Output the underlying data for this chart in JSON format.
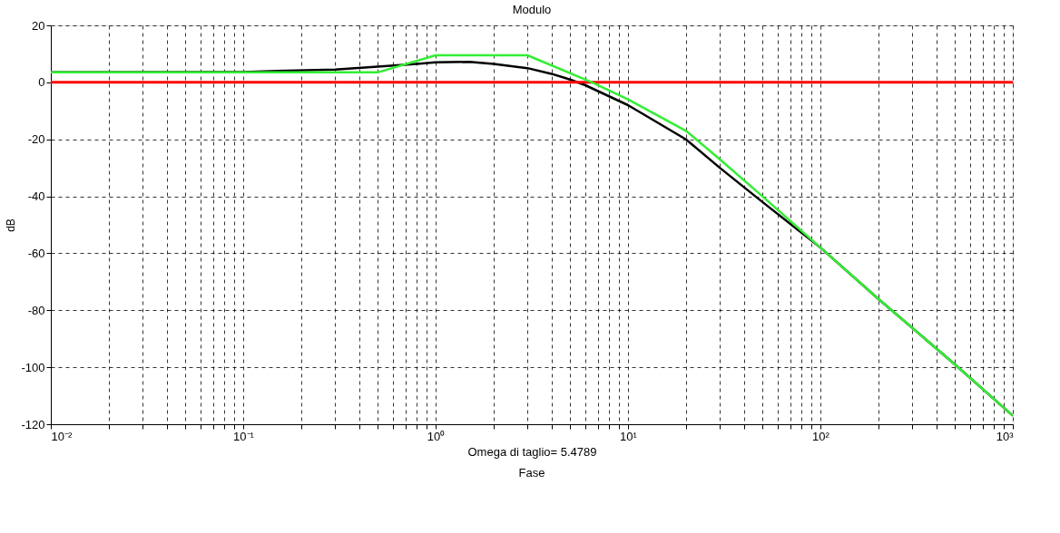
{
  "chart_data": {
    "type": "line",
    "title": "Modulo",
    "xlabel": "Omega di taglio= 5.4789",
    "ylabel": "dB",
    "annotations": [
      "Fase"
    ],
    "log": "x",
    "grid": true,
    "legend": false,
    "line_style": "solid",
    "xlim": [
      0.01,
      1000
    ],
    "ylim": [
      -120,
      20
    ],
    "xticks": [
      {
        "value": 0.01,
        "label": "10⁻²"
      },
      {
        "value": 0.02,
        "label": null
      },
      {
        "value": 0.03,
        "label": null
      },
      {
        "value": 0.04,
        "label": null
      },
      {
        "value": 0.05,
        "label": null
      },
      {
        "value": 0.06,
        "label": null
      },
      {
        "value": 0.07,
        "label": null
      },
      {
        "value": 0.08,
        "label": null
      },
      {
        "value": 0.09,
        "label": null
      },
      {
        "value": 0.1,
        "label": "10⁻¹"
      },
      {
        "value": 0.2,
        "label": null
      },
      {
        "value": 0.3,
        "label": null
      },
      {
        "value": 0.4,
        "label": null
      },
      {
        "value": 0.5,
        "label": null
      },
      {
        "value": 0.6,
        "label": null
      },
      {
        "value": 0.7,
        "label": null
      },
      {
        "value": 0.8,
        "label": null
      },
      {
        "value": 0.9,
        "label": null
      },
      {
        "value": 1,
        "label": "10⁰"
      },
      {
        "value": 2,
        "label": null
      },
      {
        "value": 3,
        "label": null
      },
      {
        "value": 4,
        "label": null
      },
      {
        "value": 5,
        "label": null
      },
      {
        "value": 6,
        "label": null
      },
      {
        "value": 7,
        "label": null
      },
      {
        "value": 8,
        "label": null
      },
      {
        "value": 9,
        "label": null
      },
      {
        "value": 10,
        "label": "10¹"
      },
      {
        "value": 20,
        "label": null
      },
      {
        "value": 30,
        "label": null
      },
      {
        "value": 40,
        "label": null
      },
      {
        "value": 50,
        "label": null
      },
      {
        "value": 60,
        "label": null
      },
      {
        "value": 70,
        "label": null
      },
      {
        "value": 80,
        "label": null
      },
      {
        "value": 90,
        "label": null
      },
      {
        "value": 100,
        "label": "10²"
      },
      {
        "value": 200,
        "label": null
      },
      {
        "value": 300,
        "label": null
      },
      {
        "value": 400,
        "label": null
      },
      {
        "value": 500,
        "label": null
      },
      {
        "value": 600,
        "label": null
      },
      {
        "value": 700,
        "label": null
      },
      {
        "value": 800,
        "label": null
      },
      {
        "value": 900,
        "label": null
      },
      {
        "value": 1000,
        "label": "10³"
      }
    ],
    "yticks": [
      -120,
      -100,
      -80,
      -60,
      -40,
      -20,
      0,
      20
    ],
    "ref_lines": [
      {
        "axis": "y",
        "value": 0,
        "color": "#ff0000"
      }
    ],
    "series": [
      {
        "color": "#000000",
        "x": [
          0.01,
          0.1,
          0.15,
          0.3,
          0.5,
          0.8,
          1,
          1.5,
          2,
          3,
          4,
          5,
          6,
          10,
          20,
          30,
          50,
          100,
          200,
          500,
          1000
        ],
        "values": [
          3.5,
          3.6,
          4,
          4.5,
          5.5,
          6.5,
          7,
          7.2,
          6.5,
          5,
          3,
          1,
          -1,
          -8,
          -20,
          -30,
          -42,
          -58,
          -76,
          -99,
          -117
        ]
      },
      {
        "color": "#33ee33",
        "x": [
          0.01,
          0.5,
          1,
          3,
          6.5,
          10,
          20,
          30,
          50,
          100,
          200,
          500,
          1000
        ],
        "values": [
          3.5,
          3.5,
          9.5,
          9.5,
          0,
          -6,
          -17,
          -27,
          -40,
          -58,
          -76,
          -99,
          -117
        ]
      }
    ]
  }
}
